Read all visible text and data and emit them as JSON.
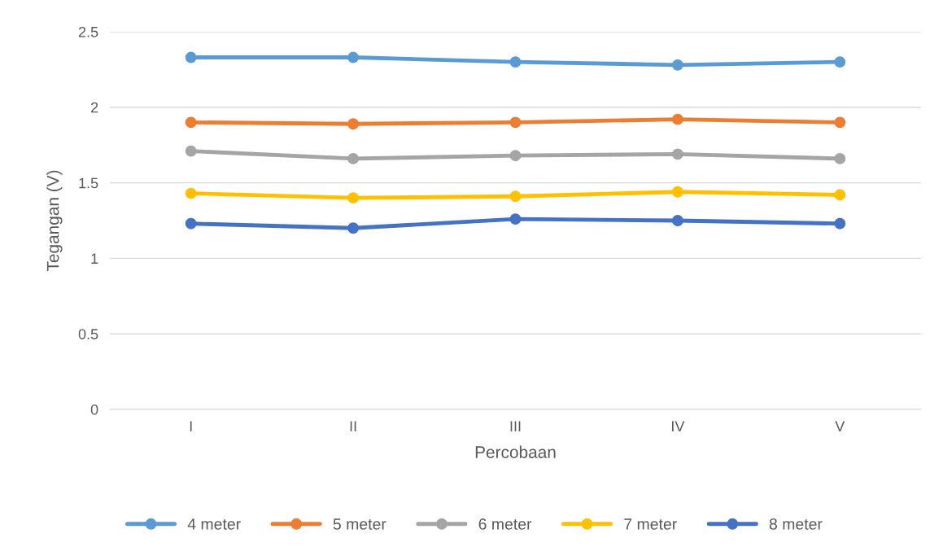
{
  "chart_data": {
    "type": "line",
    "xlabel": "Percobaan",
    "ylabel": "Tegangan (V)",
    "categories": [
      "I",
      "II",
      "III",
      "IV",
      "V"
    ],
    "series": [
      {
        "name": "4 meter",
        "color": "#5b9bd5",
        "values": [
          2.33,
          2.33,
          2.3,
          2.28,
          2.3
        ]
      },
      {
        "name": "5 meter",
        "color": "#ed7d31",
        "values": [
          1.9,
          1.89,
          1.9,
          1.92,
          1.9
        ]
      },
      {
        "name": "6 meter",
        "color": "#a5a5a5",
        "values": [
          1.71,
          1.66,
          1.68,
          1.69,
          1.66
        ]
      },
      {
        "name": "7 meter",
        "color": "#ffc000",
        "values": [
          1.43,
          1.4,
          1.41,
          1.44,
          1.42
        ]
      },
      {
        "name": "8 meter",
        "color": "#4472c4",
        "values": [
          1.23,
          1.2,
          1.26,
          1.25,
          1.23
        ]
      }
    ],
    "ylim": [
      0,
      2.5
    ],
    "yticks": [
      0,
      0.5,
      1,
      1.5,
      2,
      2.5
    ],
    "grid": "y",
    "legend": "bottom",
    "marker": "circle",
    "line_style": "solid"
  }
}
